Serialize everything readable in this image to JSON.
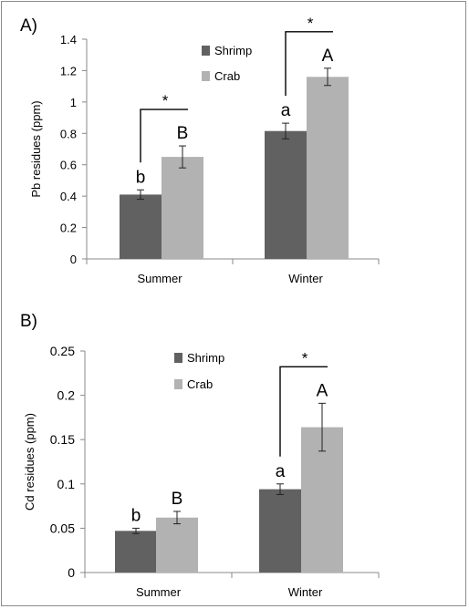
{
  "chart_data": [
    {
      "panel_label": "A)",
      "type": "bar",
      "ylabel": "Pb residues (ppm)",
      "ylim": [
        0,
        1.4
      ],
      "yticks": [
        "0",
        "0.2",
        "0.4",
        "0.6",
        "0.8",
        "1",
        "1.2",
        "1.4"
      ],
      "categories": [
        "Summer",
        "Winter"
      ],
      "series": [
        {
          "name": "Shrimp",
          "color": "#616161",
          "values": [
            0.41,
            0.815
          ],
          "errors": [
            0.03,
            0.05
          ],
          "labels": [
            "b",
            "a"
          ]
        },
        {
          "name": "Crab",
          "color": "#b2b2b2",
          "values": [
            0.65,
            1.16
          ],
          "errors": [
            0.07,
            0.055
          ],
          "labels": [
            "B",
            "A"
          ]
        }
      ],
      "significance": [
        "*",
        "*"
      ],
      "legend": "top-center",
      "grid": false
    },
    {
      "panel_label": "B)",
      "type": "bar",
      "ylabel": "Cd residues (ppm)",
      "ylim": [
        0,
        0.25
      ],
      "yticks": [
        "0",
        "0.05",
        "0.1",
        "0.15",
        "0.2",
        "0.25"
      ],
      "categories": [
        "Summer",
        "Winter"
      ],
      "series": [
        {
          "name": "Shrimp",
          "color": "#616161",
          "values": [
            0.047,
            0.094
          ],
          "errors": [
            0.003,
            0.006
          ],
          "labels": [
            "b",
            "a"
          ]
        },
        {
          "name": "Crab",
          "color": "#b2b2b2",
          "values": [
            0.062,
            0.164
          ],
          "errors": [
            0.007,
            0.027
          ],
          "labels": [
            "B",
            "A"
          ]
        }
      ],
      "significance": [
        "",
        "*"
      ],
      "legend": "top-center",
      "grid": false
    }
  ]
}
